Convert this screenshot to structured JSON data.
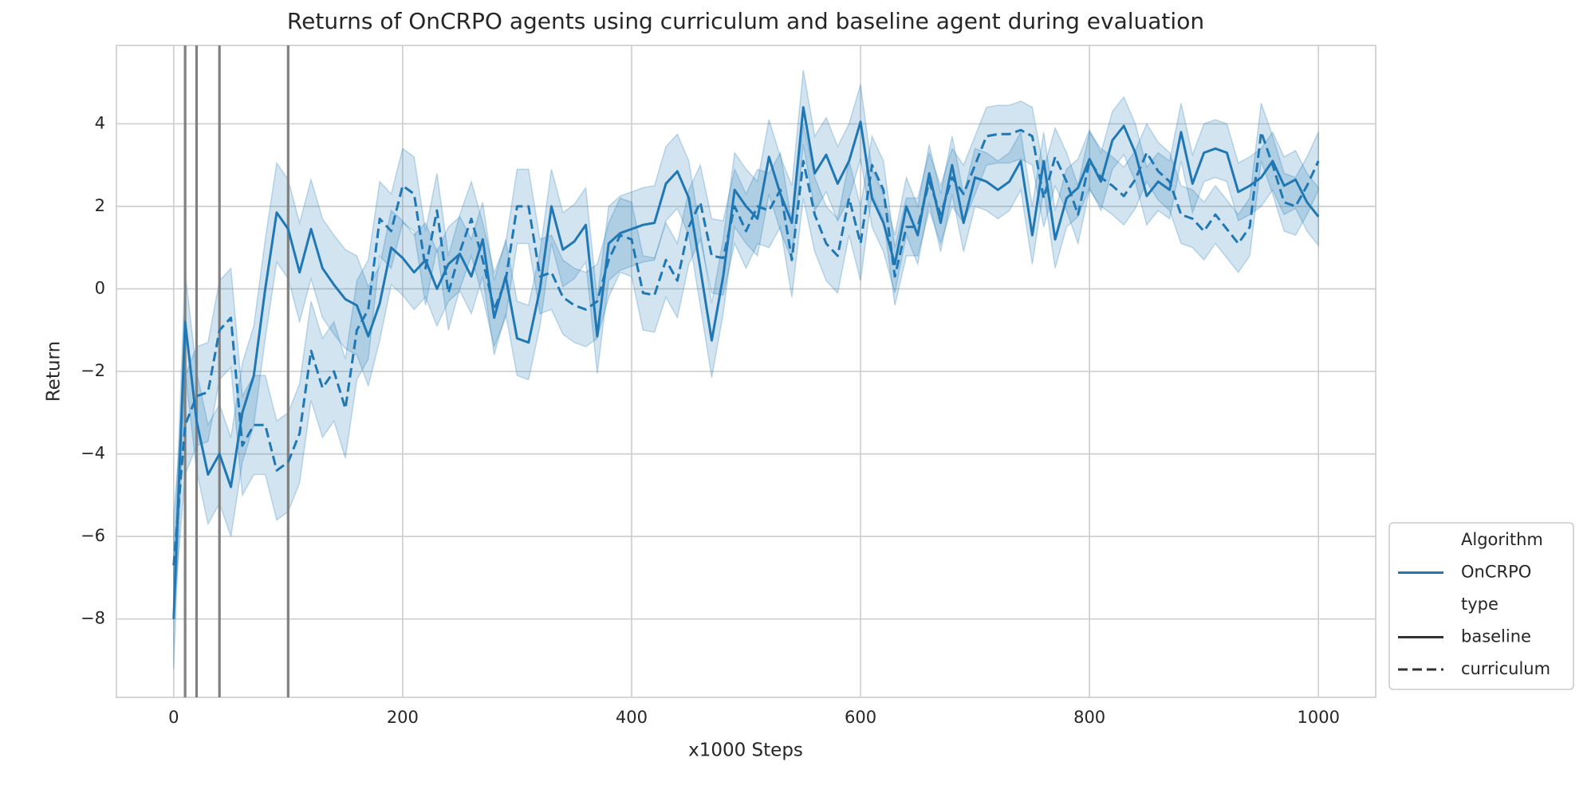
{
  "chart_data": {
    "type": "line",
    "title": "Returns of OnCRPO agents using curriculum and baseline agent during evaluation",
    "x_label": "x1000 Steps",
    "y_label": "Return",
    "x": [
      0,
      10,
      20,
      30,
      40,
      50,
      60,
      70,
      80,
      90,
      100,
      110,
      120,
      130,
      140,
      150,
      160,
      170,
      180,
      190,
      200,
      210,
      220,
      230,
      240,
      250,
      260,
      270,
      280,
      290,
      300,
      310,
      320,
      330,
      340,
      350,
      360,
      370,
      380,
      390,
      400,
      410,
      420,
      430,
      440,
      450,
      460,
      470,
      480,
      490,
      500,
      510,
      520,
      530,
      540,
      550,
      560,
      570,
      580,
      590,
      600,
      610,
      620,
      630,
      640,
      650,
      660,
      670,
      680,
      690,
      700,
      710,
      720,
      730,
      740,
      750,
      760,
      770,
      780,
      790,
      800,
      810,
      820,
      830,
      840,
      850,
      860,
      870,
      880,
      890,
      900,
      910,
      920,
      930,
      940,
      950,
      960,
      970,
      980,
      990,
      1000
    ],
    "series": [
      {
        "name": "baseline",
        "linestyle": "solid",
        "color": "#1f77b4",
        "values": [
          -8,
          -0.8,
          -3.2,
          -4.5,
          -4.0,
          -4.8,
          -3.0,
          -2.1,
          0,
          1.85,
          1.45,
          0.4,
          1.45,
          0.5,
          0.1,
          -0.25,
          -0.4,
          -1.15,
          -0.35,
          1.0,
          0.75,
          0.4,
          0.7,
          0.0,
          0.6,
          0.85,
          0.3,
          1.2,
          -0.7,
          0.3,
          -1.2,
          -1.3,
          0.0,
          2.0,
          0.95,
          1.15,
          1.55,
          -1.15,
          1.1,
          1.35,
          1.45,
          1.55,
          1.6,
          2.55,
          2.85,
          2.2,
          0.5,
          -1.25,
          0.3,
          2.4,
          2.0,
          1.7,
          3.2,
          2.3,
          1.6,
          4.4,
          2.8,
          3.25,
          2.55,
          3.1,
          4.05,
          2.2,
          1.6,
          0.6,
          2.0,
          1.3,
          2.8,
          1.6,
          3.0,
          1.6,
          2.7,
          2.6,
          2.4,
          2.6,
          3.1,
          1.3,
          3.1,
          1.2,
          2.2,
          2.45,
          3.15,
          2.6,
          3.6,
          3.95,
          3.3,
          2.25,
          2.6,
          2.4,
          3.8,
          2.55,
          3.3,
          3.4,
          3.3,
          2.35,
          2.5,
          2.7,
          3.1,
          2.5,
          2.65,
          2.1,
          1.75
        ],
        "lower": [
          -9.2,
          -2.0,
          -4.4,
          -5.7,
          -5.2,
          -6.0,
          -4.2,
          -3.3,
          -1.2,
          0.65,
          0.25,
          -0.8,
          0.25,
          -0.7,
          -1.1,
          -1.45,
          -1.6,
          -2.35,
          -1.25,
          0.1,
          -0.15,
          -0.5,
          -0.2,
          -0.9,
          -0.3,
          -0.05,
          -0.6,
          0.3,
          -1.6,
          -0.6,
          -2.1,
          -2.2,
          -0.9,
          1.1,
          0.05,
          0.25,
          0.65,
          -2.05,
          0.2,
          0.45,
          0.55,
          0.65,
          0.7,
          1.65,
          1.95,
          1.3,
          -0.4,
          -2.15,
          -0.6,
          1.5,
          1.1,
          0.8,
          2.3,
          1.4,
          0.7,
          3.5,
          1.9,
          2.35,
          1.65,
          2.2,
          3.15,
          1.5,
          0.9,
          -0.1,
          1.3,
          0.6,
          2.1,
          0.9,
          2.3,
          0.9,
          2.0,
          1.9,
          1.7,
          1.9,
          2.4,
          0.6,
          2.4,
          0.5,
          1.5,
          1.75,
          2.45,
          1.9,
          2.9,
          3.25,
          2.6,
          1.55,
          1.9,
          1.7,
          3.1,
          1.85,
          2.6,
          2.7,
          2.6,
          1.65,
          1.8,
          2.0,
          2.4,
          1.8,
          1.95,
          1.4,
          1.05
        ],
        "upper": [
          -6.8,
          0.4,
          -2.0,
          -3.3,
          -2.8,
          -3.6,
          -1.8,
          -0.9,
          1.2,
          3.05,
          2.65,
          1.6,
          2.65,
          1.7,
          1.3,
          0.95,
          0.8,
          0.05,
          0.55,
          1.9,
          1.65,
          1.3,
          1.6,
          0.9,
          1.5,
          1.75,
          1.2,
          2.1,
          0.2,
          1.2,
          -0.3,
          -0.4,
          0.9,
          2.9,
          1.85,
          2.05,
          2.45,
          -0.25,
          2.0,
          2.25,
          2.35,
          2.45,
          2.5,
          3.45,
          3.75,
          3.1,
          1.4,
          -0.35,
          1.2,
          3.3,
          2.9,
          2.6,
          4.1,
          3.2,
          2.5,
          5.3,
          3.7,
          4.15,
          3.45,
          4.0,
          4.95,
          2.9,
          2.3,
          1.3,
          2.7,
          2.0,
          3.5,
          2.3,
          3.7,
          2.3,
          3.4,
          3.3,
          3.1,
          3.3,
          3.8,
          2.0,
          3.8,
          1.9,
          2.9,
          3.15,
          3.85,
          3.3,
          4.3,
          4.65,
          4.0,
          2.95,
          3.3,
          3.1,
          4.5,
          3.25,
          4.0,
          4.1,
          4.0,
          3.05,
          3.2,
          3.4,
          3.8,
          3.2,
          3.35,
          2.8,
          2.45
        ]
      },
      {
        "name": "curriculum",
        "linestyle": "dashed",
        "color": "#1f77b4",
        "values": [
          -6.7,
          -3.3,
          -2.6,
          -2.5,
          -1.0,
          -0.7,
          -3.8,
          -3.3,
          -3.3,
          -4.4,
          -4.2,
          -3.5,
          -1.5,
          -2.4,
          -2.0,
          -2.9,
          -1.0,
          -0.5,
          1.7,
          1.4,
          2.5,
          2.3,
          0.5,
          1.9,
          -0.1,
          0.9,
          1.7,
          0.7,
          -0.5,
          0.2,
          2.0,
          2.0,
          0.3,
          0.4,
          -0.2,
          -0.4,
          -0.5,
          -0.3,
          0.7,
          1.3,
          1.2,
          -0.1,
          -0.15,
          0.7,
          0.2,
          1.5,
          2.1,
          0.8,
          0.75,
          2.0,
          1.4,
          2.0,
          1.9,
          2.4,
          0.7,
          3.1,
          1.8,
          1.1,
          0.8,
          2.2,
          1.1,
          3.0,
          2.4,
          0.3,
          1.5,
          1.5,
          2.6,
          1.8,
          2.7,
          2.3,
          3.0,
          3.7,
          3.75,
          3.75,
          3.85,
          3.7,
          2.2,
          3.2,
          2.6,
          1.8,
          3.1,
          2.7,
          2.5,
          2.25,
          2.65,
          3.3,
          2.85,
          2.6,
          1.8,
          1.7,
          1.4,
          1.8,
          1.45,
          1.1,
          1.5,
          3.8,
          3.0,
          2.1,
          2.0,
          2.5,
          3.1
        ],
        "lower": [
          -7.9,
          -4.5,
          -3.8,
          -3.7,
          -2.2,
          -1.9,
          -5.0,
          -4.5,
          -4.5,
          -5.6,
          -5.4,
          -4.7,
          -2.7,
          -3.6,
          -3.2,
          -4.1,
          -2.2,
          -1.7,
          0.8,
          0.5,
          1.6,
          1.4,
          -0.4,
          1.0,
          -1.0,
          0.0,
          0.8,
          -0.2,
          -1.4,
          -0.7,
          1.1,
          1.1,
          -0.6,
          -0.5,
          -1.1,
          -1.3,
          -1.4,
          -1.2,
          -0.2,
          0.4,
          0.3,
          -1.0,
          -1.05,
          -0.2,
          -0.7,
          0.6,
          1.2,
          -0.1,
          -0.15,
          1.1,
          0.5,
          1.1,
          1.0,
          1.5,
          -0.2,
          2.2,
          0.9,
          0.2,
          -0.1,
          1.3,
          0.2,
          2.3,
          1.7,
          -0.4,
          0.8,
          0.8,
          1.9,
          1.1,
          2.0,
          1.6,
          2.3,
          3.0,
          3.05,
          3.05,
          3.15,
          3.0,
          1.5,
          2.5,
          1.9,
          1.1,
          2.4,
          2.0,
          1.8,
          1.55,
          1.95,
          2.6,
          2.15,
          1.9,
          1.1,
          1.0,
          0.7,
          1.1,
          0.75,
          0.4,
          0.8,
          3.1,
          2.3,
          1.4,
          1.3,
          1.8,
          2.4
        ],
        "upper": [
          -5.5,
          -2.1,
          -1.4,
          -1.3,
          0.2,
          0.5,
          -2.6,
          -2.1,
          -2.1,
          -3.2,
          -3.0,
          -2.3,
          -0.3,
          -1.2,
          -0.8,
          -1.7,
          0.2,
          0.7,
          2.6,
          2.3,
          3.4,
          3.2,
          1.4,
          2.8,
          0.8,
          1.8,
          2.6,
          1.6,
          0.4,
          1.1,
          2.9,
          2.9,
          1.2,
          1.3,
          0.7,
          0.5,
          0.4,
          0.6,
          1.6,
          2.2,
          2.1,
          0.8,
          0.75,
          1.6,
          1.1,
          2.4,
          3.0,
          1.7,
          1.65,
          2.9,
          2.3,
          2.9,
          2.8,
          3.3,
          1.6,
          4.0,
          2.7,
          2.0,
          1.7,
          3.1,
          2.0,
          3.7,
          3.1,
          1.0,
          2.2,
          2.2,
          3.3,
          2.5,
          3.4,
          3.0,
          3.7,
          4.4,
          4.45,
          4.45,
          4.55,
          4.4,
          2.9,
          3.9,
          3.3,
          2.5,
          3.8,
          3.4,
          3.2,
          2.95,
          3.35,
          4.0,
          3.55,
          3.3,
          2.5,
          2.4,
          2.1,
          2.5,
          2.15,
          1.8,
          2.2,
          4.5,
          3.7,
          2.8,
          2.7,
          3.2,
          3.8
        ]
      }
    ],
    "band_opacity": 0.2,
    "vlines": [
      10,
      20,
      40,
      100
    ],
    "vline_color": "#808080",
    "xlim": [
      -50,
      1050
    ],
    "ylim": [
      -9.9,
      5.9
    ],
    "xticks": [
      0,
      200,
      400,
      600,
      800,
      1000
    ],
    "yticks": [
      {
        "value": -8,
        "label": "−8"
      },
      {
        "value": -6,
        "label": "−6"
      },
      {
        "value": -4,
        "label": "−4"
      },
      {
        "value": -2,
        "label": "−2"
      },
      0,
      2,
      4
    ],
    "grid": true,
    "legend": {
      "position": "outside lower right",
      "hue_title": "Algorithm",
      "hue_label": "OnCRPO",
      "style_title": "type"
    }
  }
}
